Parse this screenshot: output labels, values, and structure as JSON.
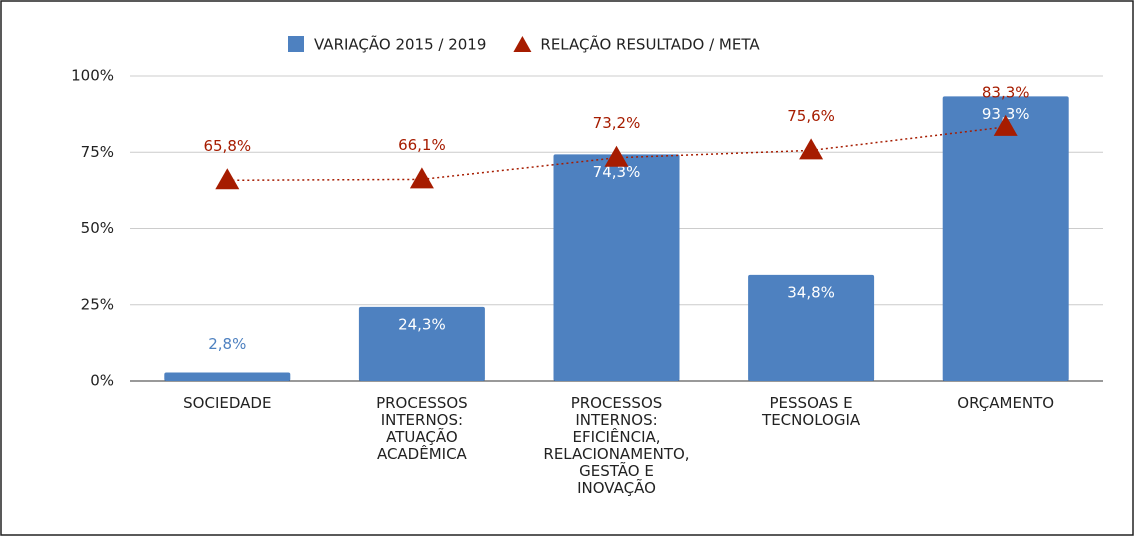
{
  "chart_data": {
    "type": "bar_line",
    "categories": [
      "SOCIEDADE",
      "PROCESSOS\nINTERNOS:\nATUAÇÃO\nACADÊMICA",
      "PROCESSOS\nINTERNOS:\nEFICIÊNCIA,\nRELACIONAMENTO,\nGESTÃO E\nINOVAÇÃO",
      "PESSOAS E\nTECNOLOGIA",
      "ORÇAMENTO"
    ],
    "series": [
      {
        "name": "VARIAÇÃO 2015 / 2019",
        "type": "bar",
        "color": "#4e81c0",
        "values": [
          2.8,
          24.3,
          74.3,
          34.8,
          93.3
        ],
        "value_labels": [
          "2,8%",
          "24,3%",
          "74,3%",
          "34,8%",
          "93,3%"
        ]
      },
      {
        "name": "RELAÇÃO RESULTADO / META",
        "type": "line",
        "color": "#a61c00",
        "values": [
          65.8,
          66.1,
          73.2,
          75.6,
          83.3
        ],
        "value_labels": [
          "65,8%",
          "66,1%",
          "73,2%",
          "75,6%",
          "83,3%"
        ]
      }
    ],
    "ylim": [
      0,
      100
    ],
    "yticks": [
      {
        "value": 0,
        "label": "0%"
      },
      {
        "value": 25,
        "label": "25%"
      },
      {
        "value": 50,
        "label": "50%"
      },
      {
        "value": 75,
        "label": "75%"
      },
      {
        "value": 100,
        "label": "100%"
      }
    ],
    "grid": true,
    "legend": "top"
  }
}
